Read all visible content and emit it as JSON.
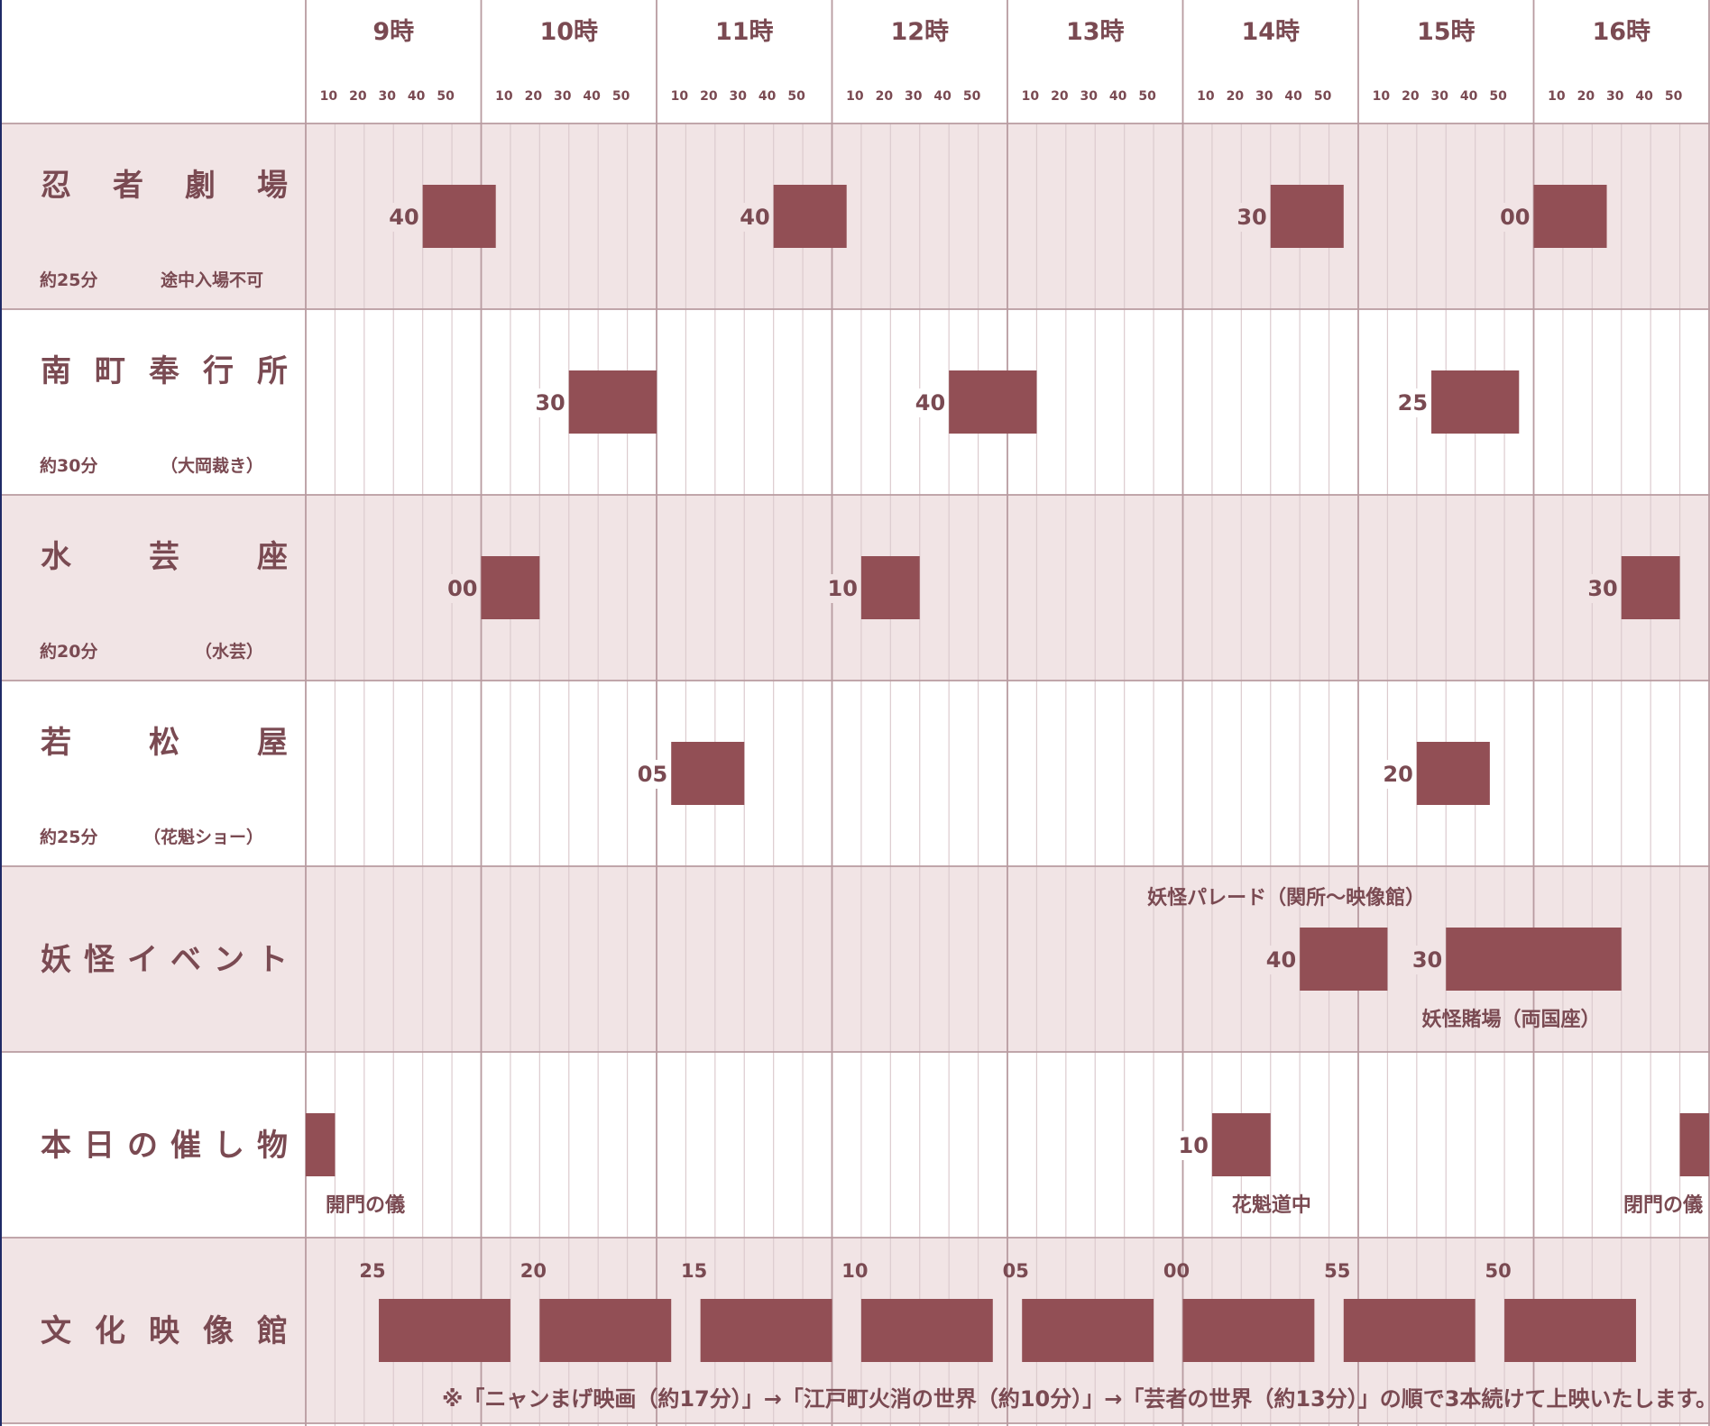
{
  "hours": [
    "9時",
    "10時",
    "11時",
    "12時",
    "13時",
    "14時",
    "15時",
    "16時"
  ],
  "minute_ticks": [
    "10",
    "20",
    "30",
    "40",
    "50"
  ],
  "rows": [
    {
      "key": "ninja",
      "name": "忍　者　劇　場",
      "duration": "約25分",
      "note": "途中入場不可",
      "shaded": true,
      "shows": [
        {
          "start": "9:40",
          "label": "40",
          "minutes": 25
        },
        {
          "start": "11:40",
          "label": "40",
          "minutes": 25
        },
        {
          "start": "14:30",
          "label": "30",
          "minutes": 25
        },
        {
          "start": "16:00",
          "label": "00",
          "minutes": 25
        }
      ]
    },
    {
      "key": "minami",
      "name": "南 町 奉 行 所",
      "duration": "約30分",
      "note": "（大岡裁き）",
      "shaded": false,
      "shows": [
        {
          "start": "10:30",
          "label": "30",
          "minutes": 30
        },
        {
          "start": "12:40",
          "label": "40",
          "minutes": 30
        },
        {
          "start": "15:25",
          "label": "25",
          "minutes": 30
        }
      ]
    },
    {
      "key": "suigei",
      "name": "水　芸　座",
      "duration": "約20分",
      "note": "（水芸）",
      "shaded": true,
      "shows": [
        {
          "start": "10:00",
          "label": "00",
          "minutes": 20
        },
        {
          "start": "12:10",
          "label": "10",
          "minutes": 20
        },
        {
          "start": "16:30",
          "label": "30",
          "minutes": 20
        }
      ]
    },
    {
      "key": "wakamatsu",
      "name": "若　松　屋",
      "duration": "約25分",
      "note": "（花魁ショー）",
      "shaded": false,
      "shows": [
        {
          "start": "11:05",
          "label": "05",
          "minutes": 25
        },
        {
          "start": "15:20",
          "label": "20",
          "minutes": 25
        }
      ]
    },
    {
      "key": "yokai",
      "name": "妖 怪 イ ベ ン ト",
      "duration": "",
      "note": "",
      "shaded": true,
      "shows": [
        {
          "start": "14:40",
          "label": "40",
          "minutes": 30,
          "caption": "妖怪パレード（関所～映像館）",
          "caption_pos": "above"
        },
        {
          "start": "15:30",
          "label": "30",
          "minutes": 60,
          "caption": "妖怪賭場（両国座）",
          "caption_pos": "below"
        }
      ]
    },
    {
      "key": "today",
      "name": "本 日 の 催 し 物",
      "duration": "",
      "note": "",
      "shaded": false,
      "shows": [
        {
          "start": "9:00",
          "label": "",
          "minutes": 10,
          "caption": "開門の儀",
          "caption_pos": "below-left"
        },
        {
          "start": "14:10",
          "label": "10",
          "minutes": 20,
          "caption": "花魁道中",
          "caption_pos": "below-left"
        },
        {
          "start": "16:50",
          "label": "",
          "minutes": 10,
          "caption": "閉門の儀",
          "caption_pos": "below-right"
        }
      ]
    },
    {
      "key": "eizokan",
      "name": "文 化 映 像 館",
      "duration": "",
      "note": "",
      "shaded": true,
      "style": "film",
      "shows": [
        {
          "start": "9:25",
          "label": "25",
          "minutes": 45
        },
        {
          "start": "10:20",
          "label": "20",
          "minutes": 45
        },
        {
          "start": "11:15",
          "label": "15",
          "minutes": 45
        },
        {
          "start": "12:10",
          "label": "10",
          "minutes": 45
        },
        {
          "start": "13:05",
          "label": "05",
          "minutes": 45
        },
        {
          "start": "14:00",
          "label": "00",
          "minutes": 45
        },
        {
          "start": "14:55",
          "label": "55",
          "minutes": 45
        },
        {
          "start": "15:50",
          "label": "50",
          "minutes": 45
        }
      ],
      "footnote": "※「ニャンまげ映画（約17分）」→「江戸町火消の世界（約10分）」→「芸者の世界（約13分）」の順で3本続けて上映いたします。"
    }
  ],
  "colors": {
    "bar": "#924f55",
    "text": "#7a4a52",
    "shade": "#f1e4e5",
    "line": "#b89ba0",
    "minor_line": "#dccbce",
    "left_edge": "#1f2a66"
  }
}
